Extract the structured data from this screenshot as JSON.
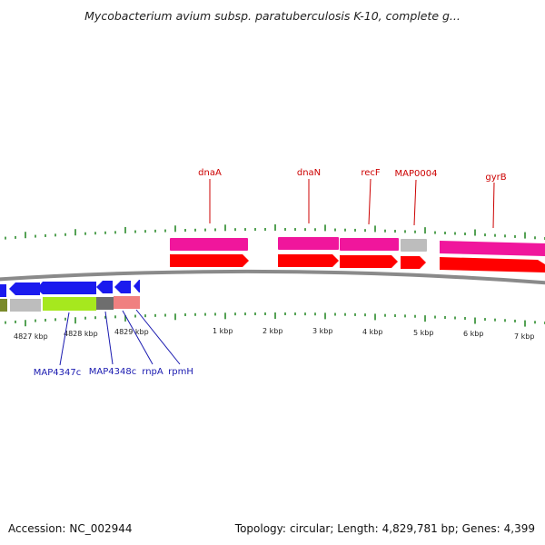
{
  "title": "Mycobacterium avium subsp. paratuberculosis K-10, complete g...",
  "footer": {
    "accession_label": "Accession:",
    "accession": "NC_002944",
    "topology_label": "Topology:",
    "topology": "circular;",
    "length_label": "Length:",
    "length": "4,829,781 bp;",
    "genes_label": "Genes:",
    "genes": "4,399"
  },
  "colors": {
    "backbone": "#8a8a8a",
    "tick": "#2a8a2a",
    "gene_forward": "#ff0000",
    "cds_forward": "#f0169c",
    "gene_reverse": "#1a1aee",
    "cds_reverse_green": "#a6e81e",
    "cds_reverse_grey": "#bdbdbd",
    "misc_dark": "#6e6e6e",
    "misc_salmon": "#f08080",
    "olive": "#7a8a2a",
    "label_forward": "#cc0000",
    "label_reverse": "#1a1ab0"
  },
  "scale": {
    "unit": "kbp",
    "labels": [
      "4827 kbp",
      "4828 kbp",
      "4829 kbp",
      "1 kbp",
      "2 kbp",
      "3 kbp",
      "4 kbp",
      "5 kbp",
      "6 kbp",
      "7 kbp"
    ]
  },
  "features_forward": [
    {
      "name": "dnaA",
      "start_kbp": 0.0,
      "end_kbp": 1.55
    },
    {
      "name": "dnaN",
      "start_kbp": 2.2,
      "end_kbp": 3.4
    },
    {
      "name": "recF",
      "start_kbp": 3.4,
      "end_kbp": 4.6
    },
    {
      "name": "MAP0004",
      "start_kbp": 4.6,
      "end_kbp": 5.15
    },
    {
      "name": "gyrB",
      "start_kbp": 5.4,
      "end_kbp": 7.5
    }
  ],
  "features_reverse": [
    {
      "name": "MAP4347c",
      "start_kbp": 4827.3,
      "end_kbp": 4828.5
    },
    {
      "name": "MAP4348c",
      "start_kbp": 4828.5,
      "end_kbp": 4828.9
    },
    {
      "name": "rnpA",
      "start_kbp": 4828.9,
      "end_kbp": 4829.25
    },
    {
      "name": "rpmH",
      "start_kbp": 4829.25,
      "end_kbp": 4829.4
    }
  ]
}
